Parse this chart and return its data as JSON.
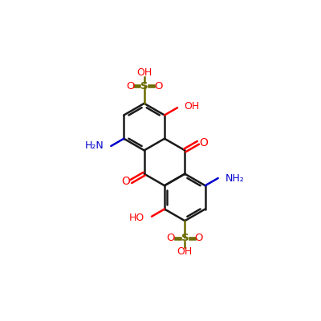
{
  "bg_color": "#ffffff",
  "bond_color": "#1a1a1a",
  "red_color": "#ff0000",
  "blue_color": "#0000cc",
  "olive_color": "#6b6b00",
  "fig_size": [
    4.0,
    4.0
  ],
  "dpi": 100,
  "s": 0.95,
  "LW": 1.8,
  "xlim": [
    0,
    10
  ],
  "ylim": [
    0,
    10
  ]
}
